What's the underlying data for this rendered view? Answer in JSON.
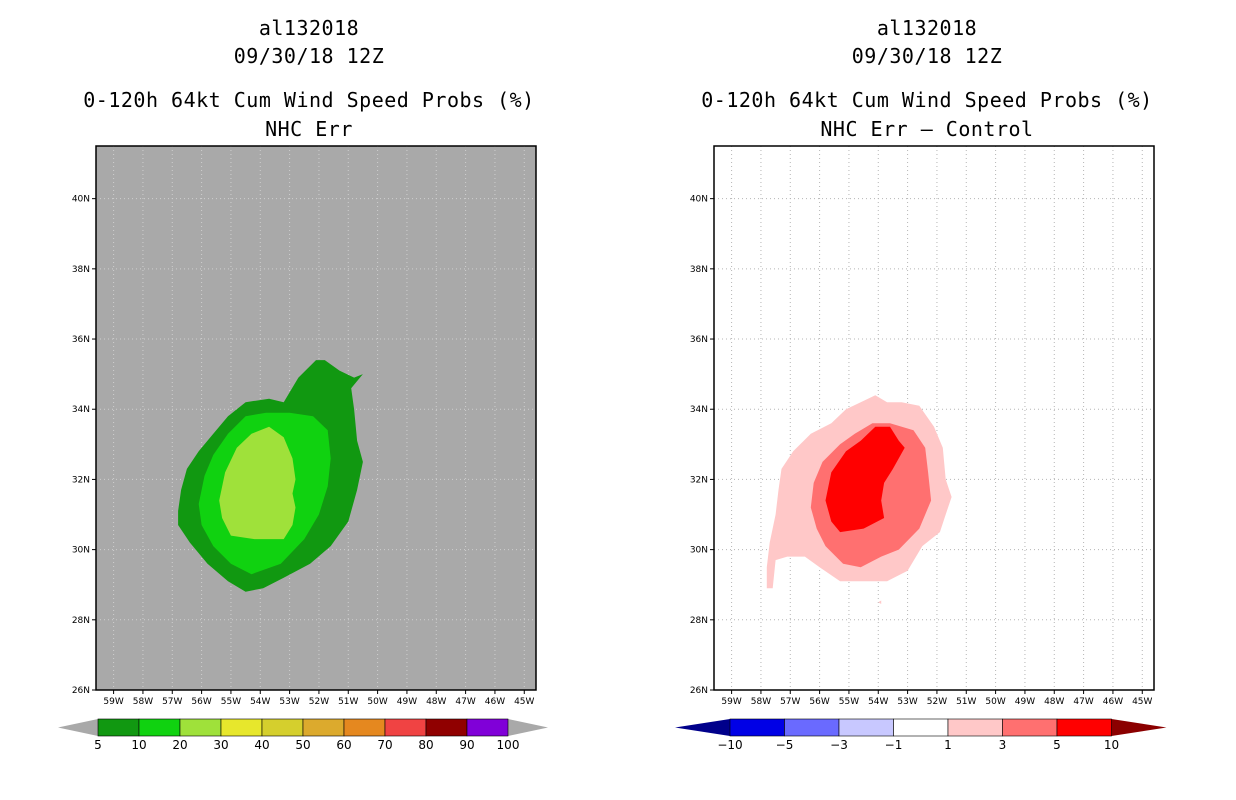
{
  "chart_data": [
    {
      "type": "heatmap",
      "storm_id": "al132018",
      "datetime": "09/30/18 12Z",
      "title": "0-120h 64kt Cum Wind Speed Probs (%)",
      "subtitle": "NHC Err",
      "background_color": "#a9a9a9",
      "x_ticks": [
        "59W",
        "58W",
        "57W",
        "56W",
        "55W",
        "54W",
        "53W",
        "52W",
        "51W",
        "50W",
        "49W",
        "48W",
        "47W",
        "46W",
        "45W"
      ],
      "y_ticks": [
        "26N",
        "28N",
        "30N",
        "32N",
        "34N",
        "36N",
        "38N",
        "40N"
      ],
      "xlim": [
        -59.6,
        -44.6
      ],
      "ylim": [
        26,
        41.5
      ],
      "grid": true,
      "colorbar": {
        "labels": [
          "5",
          "10",
          "20",
          "30",
          "40",
          "50",
          "60",
          "70",
          "80",
          "90",
          "100"
        ],
        "colors": [
          "#119811",
          "#10d210",
          "#9fe13a",
          "#e7e72c",
          "#d5cf2d",
          "#dcaa2d",
          "#e5881f",
          "#f04343",
          "#900000",
          "#8000d8"
        ],
        "extend_colors": [
          "#a9a9a9",
          "#a9a9a9"
        ]
      },
      "contours": [
        {
          "level": "5-10",
          "color": "#119811",
          "points": [
            [
              -56.8,
              31.1
            ],
            [
              -56.7,
              31.7
            ],
            [
              -56.5,
              32.3
            ],
            [
              -56.1,
              32.8
            ],
            [
              -55.6,
              33.3
            ],
            [
              -55.1,
              33.8
            ],
            [
              -54.5,
              34.2
            ],
            [
              -53.7,
              34.3
            ],
            [
              -53.2,
              34.2
            ],
            [
              -52.7,
              34.9
            ],
            [
              -52.1,
              35.4
            ],
            [
              -51.8,
              35.4
            ],
            [
              -51.3,
              35.1
            ],
            [
              -50.8,
              34.9
            ],
            [
              -50.5,
              35.0
            ],
            [
              -50.9,
              34.6
            ],
            [
              -50.8,
              34.0
            ],
            [
              -50.7,
              33.1
            ],
            [
              -50.5,
              32.5
            ],
            [
              -50.7,
              31.7
            ],
            [
              -51.0,
              30.8
            ],
            [
              -51.6,
              30.1
            ],
            [
              -52.3,
              29.6
            ],
            [
              -53.2,
              29.2
            ],
            [
              -53.9,
              28.9
            ],
            [
              -54.5,
              28.8
            ],
            [
              -55.1,
              29.1
            ],
            [
              -55.8,
              29.6
            ],
            [
              -56.4,
              30.2
            ],
            [
              -56.8,
              30.7
            ]
          ]
        },
        {
          "level": "10-20",
          "color": "#10d210",
          "points": [
            [
              -56.1,
              31.3
            ],
            [
              -55.9,
              32.1
            ],
            [
              -55.6,
              32.7
            ],
            [
              -55.1,
              33.3
            ],
            [
              -54.5,
              33.8
            ],
            [
              -53.8,
              33.9
            ],
            [
              -53.0,
              33.9
            ],
            [
              -52.2,
              33.8
            ],
            [
              -51.7,
              33.4
            ],
            [
              -51.6,
              32.6
            ],
            [
              -51.7,
              31.8
            ],
            [
              -52.0,
              31.0
            ],
            [
              -52.5,
              30.3
            ],
            [
              -53.3,
              29.6
            ],
            [
              -54.3,
              29.3
            ],
            [
              -55.0,
              29.6
            ],
            [
              -55.6,
              30.1
            ],
            [
              -56.0,
              30.7
            ]
          ]
        },
        {
          "level": "20-30",
          "color": "#9fe13a",
          "points": [
            [
              -55.4,
              31.4
            ],
            [
              -55.2,
              32.2
            ],
            [
              -54.8,
              32.9
            ],
            [
              -54.3,
              33.3
            ],
            [
              -53.7,
              33.5
            ],
            [
              -53.2,
              33.2
            ],
            [
              -52.9,
              32.6
            ],
            [
              -52.8,
              32.0
            ],
            [
              -52.9,
              31.6
            ],
            [
              -52.8,
              31.2
            ],
            [
              -52.9,
              30.7
            ],
            [
              -53.2,
              30.3
            ],
            [
              -54.2,
              30.3
            ],
            [
              -55.0,
              30.4
            ],
            [
              -55.3,
              30.9
            ]
          ]
        }
      ]
    },
    {
      "type": "heatmap",
      "storm_id": "al132018",
      "datetime": "09/30/18 12Z",
      "title": "0-120h 64kt Cum Wind Speed Probs (%)",
      "subtitle": "NHC Err – Control",
      "background_color": "#ffffff",
      "x_ticks": [
        "59W",
        "58W",
        "57W",
        "56W",
        "55W",
        "54W",
        "53W",
        "52W",
        "51W",
        "50W",
        "49W",
        "48W",
        "47W",
        "46W",
        "45W"
      ],
      "y_ticks": [
        "26N",
        "28N",
        "30N",
        "32N",
        "34N",
        "36N",
        "38N",
        "40N"
      ],
      "xlim": [
        -59.6,
        -44.6
      ],
      "ylim": [
        26,
        41.5
      ],
      "grid": true,
      "colorbar": {
        "labels": [
          "−10",
          "−5",
          "−3",
          "−1",
          "1",
          "3",
          "5",
          "10"
        ],
        "colors": [
          "#0000e6",
          "#6a6aff",
          "#c8c8ff",
          "#ffffff",
          "#ffc8c8",
          "#ff7070",
          "#ff0000"
        ],
        "extend_colors": [
          "#00008b",
          "#8b0000"
        ]
      },
      "contours": [
        {
          "level": "1-3",
          "color": "#ffc8c8",
          "points": [
            [
              -57.7,
              30.2
            ],
            [
              -57.5,
              31.0
            ],
            [
              -57.4,
              31.7
            ],
            [
              -57.3,
              32.3
            ],
            [
              -56.9,
              32.8
            ],
            [
              -56.3,
              33.3
            ],
            [
              -55.6,
              33.6
            ],
            [
              -55.1,
              34.0
            ],
            [
              -54.6,
              34.2
            ],
            [
              -54.1,
              34.4
            ],
            [
              -53.7,
              34.2
            ],
            [
              -53.2,
              34.2
            ],
            [
              -52.6,
              34.1
            ],
            [
              -52.1,
              33.5
            ],
            [
              -51.8,
              32.9
            ],
            [
              -51.7,
              32.0
            ],
            [
              -51.5,
              31.5
            ],
            [
              -51.7,
              31.0
            ],
            [
              -51.9,
              30.5
            ],
            [
              -52.5,
              30.1
            ],
            [
              -53.0,
              29.4
            ],
            [
              -53.7,
              29.1
            ],
            [
              -54.6,
              29.1
            ],
            [
              -55.3,
              29.1
            ],
            [
              -56.0,
              29.5
            ],
            [
              -56.5,
              29.8
            ],
            [
              -57.1,
              29.8
            ],
            [
              -57.5,
              29.7
            ],
            [
              -57.6,
              28.9
            ],
            [
              -57.8,
              28.9
            ],
            [
              -57.8,
              29.5
            ]
          ]
        },
        {
          "level": "3-5",
          "color": "#ff7070",
          "points": [
            [
              -56.3,
              31.2
            ],
            [
              -56.2,
              31.9
            ],
            [
              -55.9,
              32.5
            ],
            [
              -55.3,
              33.0
            ],
            [
              -54.8,
              33.3
            ],
            [
              -54.2,
              33.6
            ],
            [
              -53.6,
              33.6
            ],
            [
              -52.8,
              33.4
            ],
            [
              -52.4,
              32.9
            ],
            [
              -52.3,
              32.2
            ],
            [
              -52.2,
              31.4
            ],
            [
              -52.6,
              30.6
            ],
            [
              -53.3,
              30.0
            ],
            [
              -53.9,
              29.8
            ],
            [
              -54.6,
              29.5
            ],
            [
              -55.2,
              29.6
            ],
            [
              -55.8,
              30.1
            ],
            [
              -56.1,
              30.6
            ]
          ]
        },
        {
          "level": "5-10",
          "color": "#ff0000",
          "points": [
            [
              -55.8,
              31.4
            ],
            [
              -55.6,
              32.2
            ],
            [
              -55.1,
              32.8
            ],
            [
              -54.6,
              33.1
            ],
            [
              -54.1,
              33.5
            ],
            [
              -53.6,
              33.5
            ],
            [
              -53.3,
              33.1
            ],
            [
              -53.1,
              32.9
            ],
            [
              -53.5,
              32.3
            ],
            [
              -53.8,
              31.9
            ],
            [
              -53.9,
              31.4
            ],
            [
              -53.8,
              30.9
            ],
            [
              -54.5,
              30.6
            ],
            [
              -55.3,
              30.5
            ],
            [
              -55.6,
              30.8
            ]
          ]
        },
        {
          "level": "1-3",
          "color": "#ffc8c8",
          "points": [
            [
              -54.0,
              28.5
            ],
            [
              -53.9,
              28.45
            ],
            [
              -53.9,
              28.55
            ]
          ]
        }
      ]
    }
  ]
}
